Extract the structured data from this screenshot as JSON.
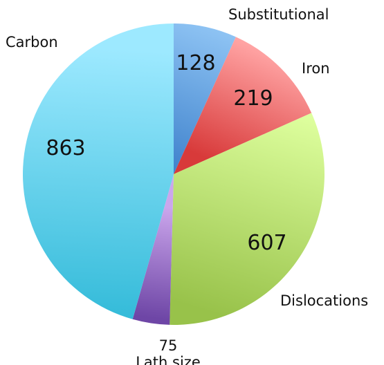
{
  "chart_data": {
    "type": "pie",
    "title": "",
    "labels": [
      "Substitutional",
      "Iron",
      "Dislocations",
      "Lath size",
      "Carbon"
    ],
    "values": [
      128,
      219,
      607,
      75,
      863
    ],
    "colors": {
      "substitutional": [
        "#8fc4f4",
        "#3f82cc"
      ],
      "iron": [
        "#ffa3a3",
        "#d83a3a"
      ],
      "dislocations": [
        "#deff9e",
        "#98c24a"
      ],
      "lath_size": [
        "#cba6ec",
        "#6e46a6"
      ],
      "carbon": [
        "#9de9ff",
        "#36bcda"
      ]
    },
    "start_angle_deg": 0,
    "direction": "clockwise"
  }
}
